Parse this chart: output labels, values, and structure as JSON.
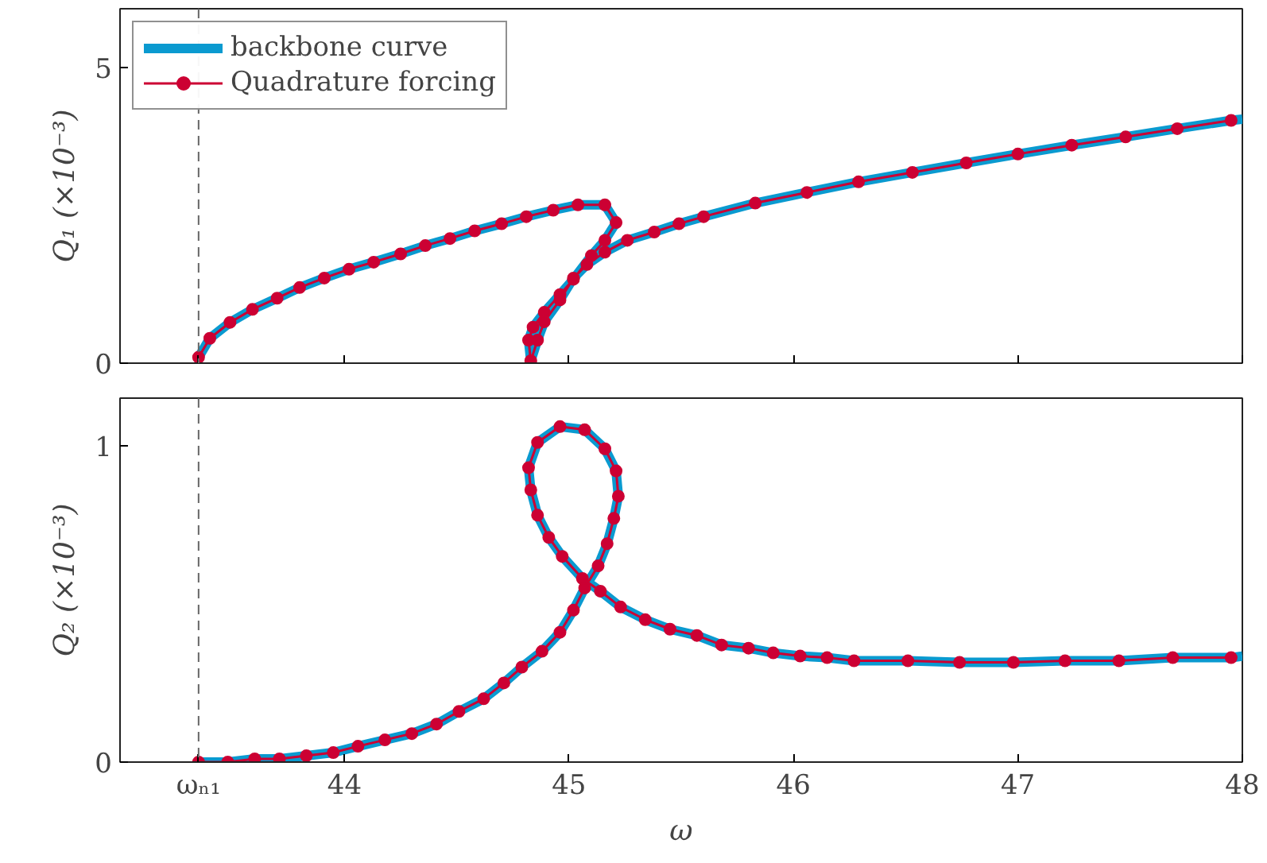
{
  "chart_data": [
    {
      "type": "line",
      "ylabel": "Q₁ (×10⁻³)",
      "xlim": [
        43,
        48
      ],
      "ylim": [
        0,
        6
      ],
      "xticks": [
        {
          "value": 43.35,
          "label": null
        },
        44,
        45,
        46,
        47,
        48
      ],
      "yticks": [
        0,
        5
      ],
      "tick_labels": "y",
      "grid": false,
      "legend": "top left",
      "ref_lines": [
        {
          "axis": "x",
          "value": 43.35,
          "color": "#666666",
          "line_style": "dashed"
        }
      ],
      "series": [
        {
          "name": "backbone curve",
          "color": "#0a9ad0",
          "marker": "none",
          "x": [
            43.35,
            43.4,
            43.49,
            43.59,
            43.7,
            43.8,
            43.91,
            44.02,
            44.13,
            44.25,
            44.36,
            44.47,
            44.58,
            44.7,
            44.81,
            44.93,
            45.04,
            45.16,
            45.21,
            45.16,
            45.1,
            45.02,
            44.96,
            44.89,
            44.84,
            44.82,
            44.83,
            44.86,
            44.89,
            44.96,
            45.02,
            45.08,
            45.16,
            45.26,
            45.38,
            45.49,
            45.6,
            45.83,
            46.06,
            46.29,
            46.53,
            46.77,
            47.0,
            47.24,
            47.48,
            47.71,
            47.95,
            48.0
          ],
          "values": [
            0.1,
            0.42,
            0.69,
            0.91,
            1.1,
            1.28,
            1.44,
            1.59,
            1.71,
            1.85,
            1.99,
            2.11,
            2.24,
            2.36,
            2.48,
            2.59,
            2.68,
            2.68,
            2.38,
            2.08,
            1.82,
            1.42,
            1.16,
            0.86,
            0.61,
            0.39,
            0.04,
            0.39,
            0.7,
            1.07,
            1.44,
            1.67,
            1.88,
            2.08,
            2.22,
            2.36,
            2.48,
            2.71,
            2.89,
            3.07,
            3.23,
            3.39,
            3.54,
            3.69,
            3.83,
            3.97,
            4.11,
            4.13
          ]
        },
        {
          "name": "Quadrature forcing",
          "color": "#cc0033",
          "marker": "circle",
          "x": [
            43.35,
            43.4,
            43.49,
            43.59,
            43.7,
            43.8,
            43.91,
            44.02,
            44.13,
            44.25,
            44.36,
            44.47,
            44.58,
            44.7,
            44.81,
            44.93,
            45.04,
            45.16,
            45.21,
            45.16,
            45.1,
            45.02,
            44.96,
            44.89,
            44.84,
            44.82,
            44.83,
            44.86,
            44.89,
            44.96,
            45.02,
            45.08,
            45.16,
            45.26,
            45.38,
            45.49,
            45.6,
            45.83,
            46.06,
            46.29,
            46.53,
            46.77,
            47.0,
            47.24,
            47.48,
            47.71,
            47.95
          ],
          "values": [
            0.1,
            0.42,
            0.69,
            0.91,
            1.1,
            1.28,
            1.44,
            1.59,
            1.71,
            1.85,
            1.99,
            2.11,
            2.24,
            2.36,
            2.48,
            2.59,
            2.68,
            2.68,
            2.38,
            2.08,
            1.82,
            1.42,
            1.16,
            0.86,
            0.61,
            0.39,
            0.04,
            0.39,
            0.7,
            1.07,
            1.44,
            1.67,
            1.88,
            2.08,
            2.22,
            2.36,
            2.48,
            2.71,
            2.89,
            3.07,
            3.23,
            3.39,
            3.54,
            3.69,
            3.83,
            3.97,
            4.11
          ]
        }
      ]
    },
    {
      "type": "line",
      "xlabel": "ω",
      "ylabel": "Q₂ (×10⁻³)",
      "xlim": [
        43,
        48
      ],
      "ylim": [
        0,
        1.15
      ],
      "xticks": [
        {
          "value": 43.35,
          "label": "ωₙ₁"
        },
        44,
        45,
        46,
        47,
        48
      ],
      "yticks": [
        0,
        1
      ],
      "grid": false,
      "ref_lines": [
        {
          "axis": "x",
          "value": 43.35,
          "color": "#666666",
          "line_style": "dashed"
        }
      ],
      "series": [
        {
          "color": "#0a9ad0",
          "marker": "none",
          "x": [
            43.35,
            43.48,
            43.6,
            43.71,
            43.83,
            43.95,
            44.06,
            44.18,
            44.3,
            44.41,
            44.51,
            44.62,
            44.71,
            44.79,
            44.88,
            44.96,
            45.02,
            45.07,
            45.13,
            45.17,
            45.2,
            45.22,
            45.21,
            45.16,
            45.07,
            44.96,
            44.86,
            44.82,
            44.83,
            44.86,
            44.91,
            44.97,
            45.06,
            45.14,
            45.23,
            45.34,
            45.45,
            45.57,
            45.68,
            45.8,
            45.91,
            46.03,
            46.15,
            46.27,
            46.51,
            46.74,
            46.98,
            47.21,
            47.45,
            47.69,
            47.95,
            48.0
          ],
          "values": [
            0,
            0.0,
            0.01,
            0.01,
            0.02,
            0.03,
            0.05,
            0.07,
            0.09,
            0.12,
            0.16,
            0.2,
            0.25,
            0.3,
            0.35,
            0.41,
            0.48,
            0.55,
            0.62,
            0.69,
            0.77,
            0.84,
            0.92,
            0.99,
            1.05,
            1.06,
            1.01,
            0.93,
            0.86,
            0.78,
            0.71,
            0.65,
            0.58,
            0.54,
            0.49,
            0.45,
            0.42,
            0.4,
            0.37,
            0.36,
            0.345,
            0.335,
            0.33,
            0.32,
            0.32,
            0.315,
            0.315,
            0.32,
            0.32,
            0.33,
            0.33,
            0.335
          ]
        },
        {
          "color": "#cc0033",
          "marker": "circle",
          "x": [
            43.35,
            43.48,
            43.6,
            43.71,
            43.83,
            43.95,
            44.06,
            44.18,
            44.3,
            44.41,
            44.51,
            44.62,
            44.71,
            44.79,
            44.88,
            44.96,
            45.02,
            45.07,
            45.13,
            45.17,
            45.2,
            45.22,
            45.21,
            45.16,
            45.07,
            44.96,
            44.86,
            44.82,
            44.83,
            44.86,
            44.91,
            44.97,
            45.06,
            45.14,
            45.23,
            45.34,
            45.45,
            45.57,
            45.68,
            45.8,
            45.91,
            46.03,
            46.15,
            46.27,
            46.51,
            46.74,
            46.98,
            47.21,
            47.45,
            47.69,
            47.95
          ],
          "values": [
            0,
            0.0,
            0.01,
            0.01,
            0.02,
            0.03,
            0.05,
            0.07,
            0.09,
            0.12,
            0.16,
            0.2,
            0.25,
            0.3,
            0.35,
            0.41,
            0.48,
            0.55,
            0.62,
            0.69,
            0.77,
            0.84,
            0.92,
            0.99,
            1.05,
            1.06,
            1.01,
            0.93,
            0.86,
            0.78,
            0.71,
            0.65,
            0.58,
            0.54,
            0.49,
            0.45,
            0.42,
            0.4,
            0.37,
            0.36,
            0.345,
            0.335,
            0.33,
            0.32,
            0.32,
            0.315,
            0.315,
            0.32,
            0.32,
            0.33,
            0.33
          ]
        }
      ]
    }
  ]
}
